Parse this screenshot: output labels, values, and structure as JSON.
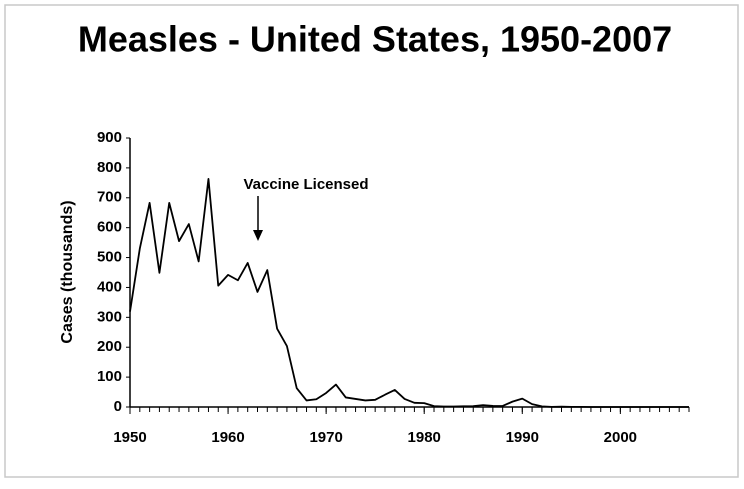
{
  "chart_data": {
    "type": "line",
    "title": "Measles - United States, 1950-2007",
    "y_label": "Cases (thousands)",
    "annotation": "Vaccine Licensed",
    "x": [
      1950,
      1951,
      1952,
      1953,
      1954,
      1955,
      1956,
      1957,
      1958,
      1959,
      1960,
      1961,
      1962,
      1963,
      1964,
      1965,
      1966,
      1967,
      1968,
      1969,
      1970,
      1971,
      1972,
      1973,
      1974,
      1975,
      1976,
      1977,
      1978,
      1979,
      1980,
      1981,
      1982,
      1983,
      1984,
      1985,
      1986,
      1987,
      1988,
      1989,
      1990,
      1991,
      1992,
      1993,
      1994,
      1995,
      1996,
      1997,
      1998,
      1999,
      2000,
      2001,
      2002,
      2003,
      2004,
      2005,
      2006,
      2007
    ],
    "values": [
      319,
      530,
      683,
      449,
      683,
      555,
      612,
      487,
      763,
      406,
      442,
      424,
      482,
      385,
      458,
      262,
      204,
      63,
      22,
      26,
      47,
      75,
      32,
      27,
      22,
      24,
      41,
      57,
      27,
      14,
      13,
      3,
      1.7,
      1.5,
      2.6,
      2.8,
      6.3,
      3.7,
      3.4,
      18,
      28,
      9.6,
      2.2,
      0.3,
      1,
      0.3,
      0.5,
      0.1,
      0.1,
      0.1,
      0.1,
      0.1,
      0.04,
      0.06,
      0.04,
      0.07,
      0.06,
      0.04
    ],
    "color": "#000000",
    "xlim": [
      1950,
      2007
    ],
    "xticks": [
      1950,
      1960,
      1970,
      1980,
      1990,
      2000
    ],
    "ylim": [
      0,
      900
    ],
    "yticks": [
      0,
      100,
      200,
      300,
      400,
      500,
      600,
      700,
      800,
      900
    ],
    "grid": false
  }
}
